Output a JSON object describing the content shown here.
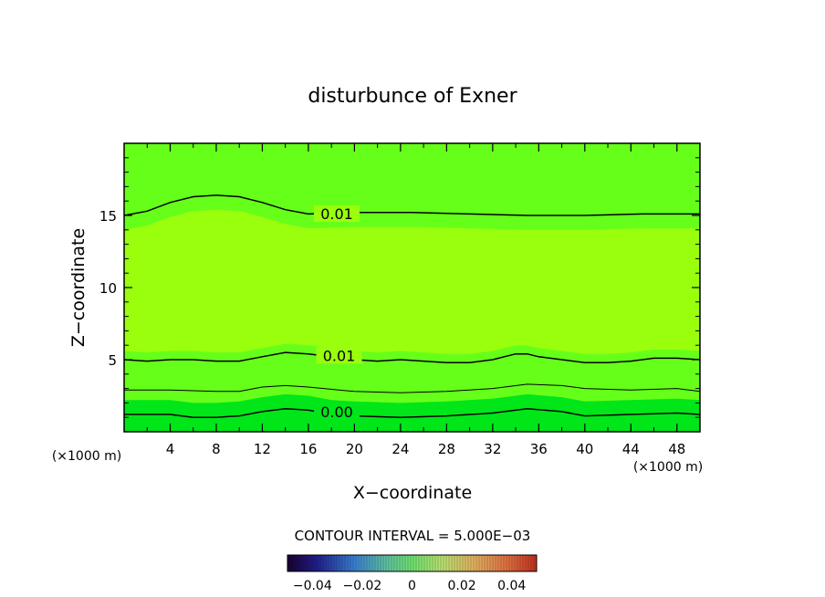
{
  "chart_data": {
    "type": "heatmap",
    "title": "disturbunce of Exner",
    "xlabel": "X−coordinate",
    "ylabel": "Z−coordinate",
    "x_unit_left": "(×1000 m)",
    "x_unit_right": "(×1000 m)",
    "xlim": [
      0,
      50
    ],
    "ylim": [
      0,
      20
    ],
    "x_ticks": [
      4,
      8,
      12,
      16,
      20,
      24,
      28,
      32,
      36,
      40,
      44,
      48
    ],
    "y_ticks": [
      5,
      10,
      15
    ],
    "contour_interval_text": "CONTOUR INTERVAL = 5.000E−03",
    "colorbar": {
      "range": [
        -0.05,
        0.05
      ],
      "tick_values": [
        -0.04,
        -0.02,
        0,
        0.02,
        0.04
      ],
      "tick_labels": [
        "−0.04",
        "−0.02",
        "0",
        "0.02",
        "0.04"
      ]
    },
    "filled_bands": [
      {
        "name": "upper",
        "color": "#66ff1a"
      },
      {
        "name": "middle",
        "color": "#99ff0d"
      },
      {
        "name": "lower",
        "color": "#00e619"
      }
    ],
    "contours": [
      {
        "level": 0.01,
        "label": "0.01",
        "label_x": 16.8,
        "x": [
          0,
          2,
          4,
          6,
          8,
          10,
          12,
          14,
          16,
          20,
          25,
          30,
          35,
          40,
          45,
          50
        ],
        "z": [
          15.0,
          15.3,
          15.9,
          16.3,
          16.4,
          16.3,
          15.9,
          15.4,
          15.1,
          15.2,
          15.2,
          15.1,
          15.0,
          15.0,
          15.1,
          15.1
        ]
      },
      {
        "level": 0.01,
        "label": "0.01",
        "label_x": 17.0,
        "x": [
          0,
          2,
          4,
          6,
          8,
          10,
          12,
          14,
          16,
          18,
          20,
          22,
          24,
          26,
          28,
          30,
          32,
          34,
          35,
          36,
          38,
          40,
          42,
          44,
          46,
          48,
          50
        ],
        "z": [
          5.0,
          4.9,
          5.0,
          5.0,
          4.9,
          4.9,
          5.2,
          5.5,
          5.4,
          5.2,
          5.0,
          4.9,
          5.0,
          4.9,
          4.8,
          4.8,
          5.0,
          5.4,
          5.4,
          5.2,
          5.0,
          4.8,
          4.8,
          4.9,
          5.1,
          5.1,
          5.0
        ]
      },
      {
        "level": 0.005,
        "label": "",
        "x": [
          0,
          4,
          8,
          10,
          12,
          14,
          16,
          20,
          24,
          28,
          32,
          35,
          38,
          40,
          44,
          48,
          50
        ],
        "z": [
          2.9,
          2.9,
          2.8,
          2.8,
          3.1,
          3.2,
          3.1,
          2.8,
          2.7,
          2.8,
          3.0,
          3.3,
          3.2,
          3.0,
          2.9,
          3.0,
          2.8
        ]
      },
      {
        "level": 0.0,
        "label": "0.00",
        "label_x": 16.8,
        "x": [
          0,
          4,
          6,
          8,
          10,
          12,
          14,
          16,
          18,
          20,
          24,
          28,
          32,
          35,
          38,
          40,
          44,
          48,
          50
        ],
        "z": [
          1.2,
          1.2,
          1.0,
          1.0,
          1.1,
          1.4,
          1.6,
          1.5,
          1.2,
          1.1,
          1.0,
          1.1,
          1.3,
          1.6,
          1.4,
          1.1,
          1.2,
          1.3,
          1.2
        ]
      }
    ]
  }
}
